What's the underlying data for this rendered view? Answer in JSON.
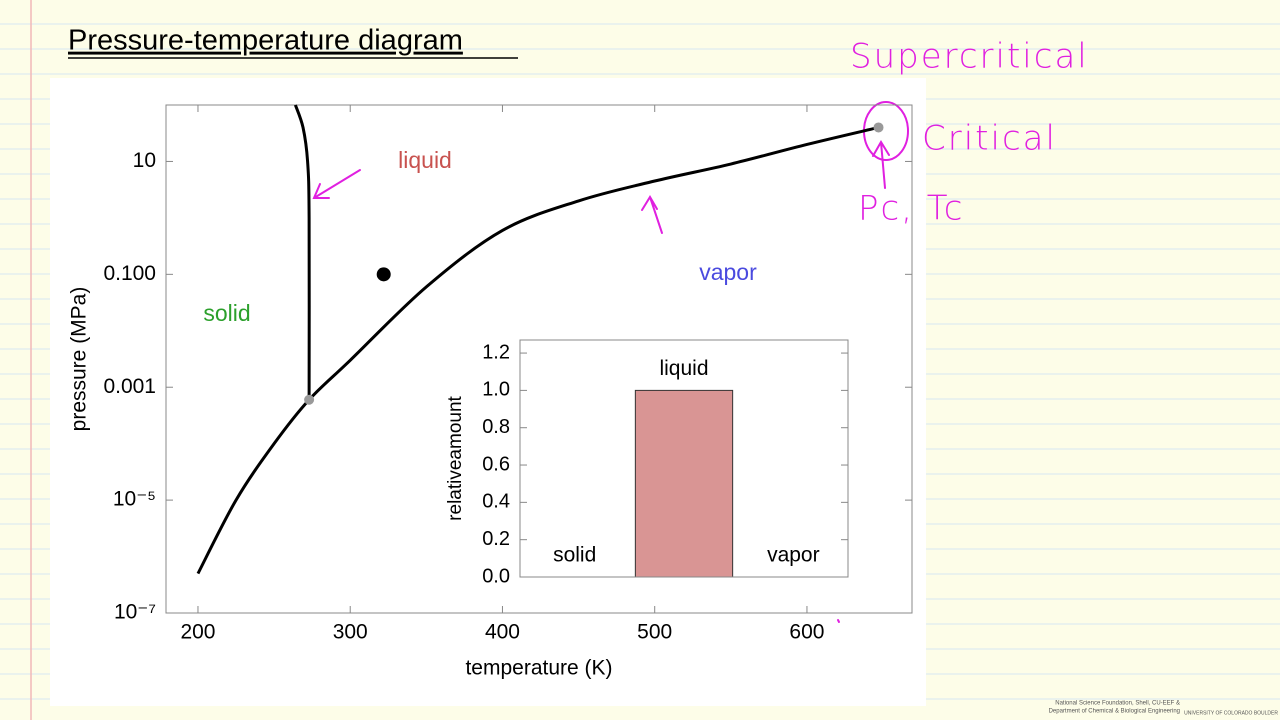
{
  "title": "Pressure-temperature diagram",
  "handwriting": [
    "Supercritical",
    "Critical",
    "Pc, Tc"
  ],
  "credit": [
    "National Science Foundation, Shell, CU-EEF &",
    "Department of Chemical & Biological Engineering",
    "UNIVERSITY OF COLORADO BOULDER"
  ],
  "chart_data": [
    {
      "type": "line",
      "xlabel": "temperature (K)",
      "ylabel": "pressure (MPa)",
      "xlim": [
        179,
        669
      ],
      "xticks": [
        200,
        300,
        400,
        500,
        600
      ],
      "ylim": [
        1e-07,
        100
      ],
      "yscale": "log",
      "yticks": [
        {
          "value": 1e-07,
          "label": "10⁻⁷"
        },
        {
          "value": 1e-05,
          "label": "10⁻⁵"
        },
        {
          "value": 0.001,
          "label": "0.001"
        },
        {
          "value": 0.1,
          "label": "0.100"
        },
        10
      ],
      "series": [
        {
          "color": "#000000",
          "x": [
            200,
            225,
            250,
            273,
            300,
            350,
            400,
            450,
            500,
            550,
            600,
            647
          ],
          "values": [
            5e-07,
            1e-05,
            0.0001,
            0.0006,
            0.003,
            0.06,
            0.6,
            2,
            4.5,
            9,
            20,
            40
          ]
        },
        {
          "color": "#000000",
          "x": [
            273,
            273,
            272,
            269,
            264
          ],
          "values": [
            0.0006,
            1,
            10,
            40,
            100
          ]
        }
      ],
      "points": [
        {
          "x": 273,
          "y": 0.0006,
          "color": "#999999"
        },
        {
          "x": 647,
          "y": 40,
          "color": "#999999"
        },
        {
          "x": 322,
          "y": 0.1,
          "color": "#000000"
        }
      ],
      "annotations": [
        {
          "text": "liquid",
          "color": "#c8524f"
        },
        {
          "text": "solid",
          "color": "#2ca02c"
        },
        {
          "text": "vapor",
          "color": "#4a4adf"
        }
      ]
    },
    {
      "type": "bar",
      "ylabel": "relativeamount",
      "categories": [
        "solid",
        "liquid",
        "vapor"
      ],
      "values": [
        0,
        1,
        0
      ],
      "color": "#d99594",
      "ylim": [
        0,
        1.27
      ],
      "yticks": [
        {
          "value": 0,
          "label": "0.0"
        },
        0.2,
        0.4,
        0.6,
        0.8,
        {
          "value": 1,
          "label": "1.0"
        },
        1.2
      ]
    }
  ]
}
